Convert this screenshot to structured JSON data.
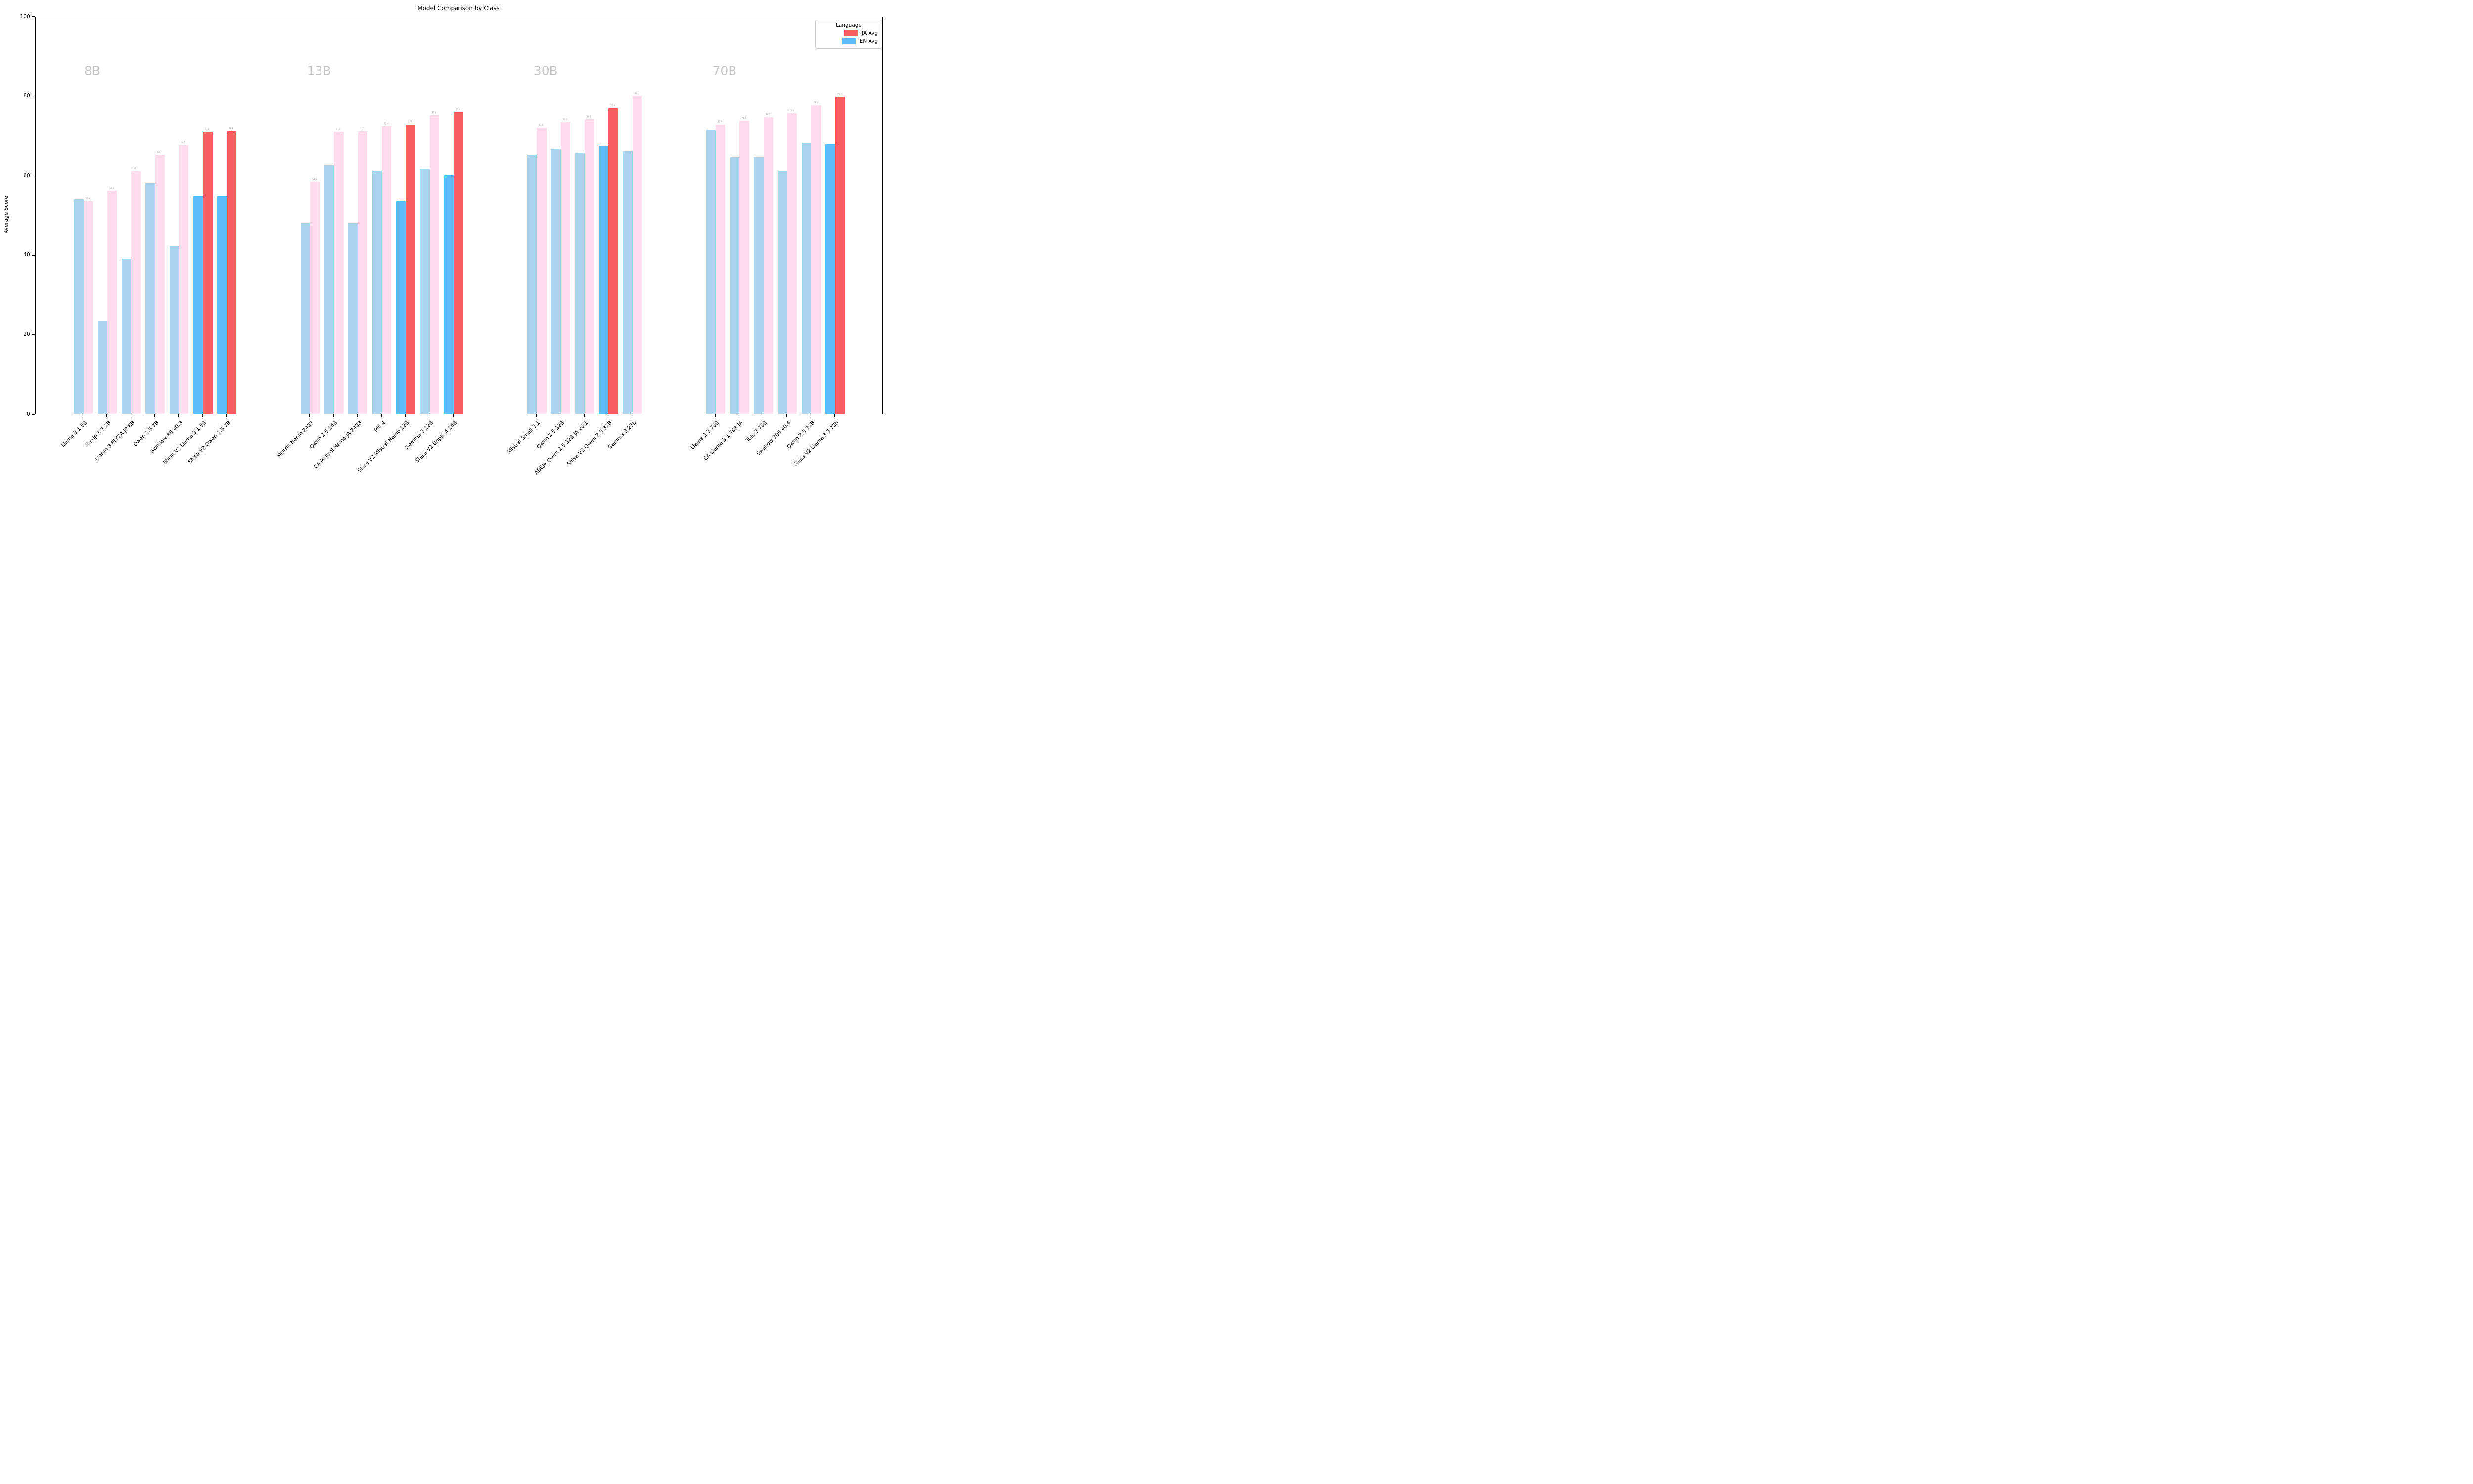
{
  "chart_data": {
    "type": "bar",
    "title": "Model Comparison by Class",
    "ylabel": "Average Score",
    "ylim": [
      0,
      100
    ],
    "yticks": [
      0,
      20,
      40,
      60,
      80,
      100
    ],
    "grid": false,
    "legend": {
      "title": "Language",
      "position": "upper right",
      "series": [
        {
          "name": "JA Avg",
          "color": "#fa5f5f"
        },
        {
          "name": "EN Avg",
          "color": "#5bbcf7"
        }
      ]
    },
    "muted_colors": {
      "ja": "#ffdcec",
      "en": "#abd5ee"
    },
    "highlight_colors": {
      "ja": "#fa5f5f",
      "en": "#5bbcf7"
    },
    "bar_value_labels": "ja_series_only",
    "groups": [
      {
        "label": "8B",
        "models": [
          {
            "name": "Llama 3.1 8B",
            "en": 53.9,
            "ja": 53.4,
            "highlight": false
          },
          {
            "name": "llm-jp 3 7.2B",
            "en": 23.5,
            "ja": 56.0,
            "highlight": false
          },
          {
            "name": "Llama 3 ELYZA JP 8B",
            "en": 39.0,
            "ja": 61.0,
            "highlight": false
          },
          {
            "name": "Qwen 2.5 7B",
            "en": 58.0,
            "ja": 65.1,
            "highlight": false
          },
          {
            "name": "Swallow 8B v0.3",
            "en": 42.2,
            "ja": 67.5,
            "highlight": false
          },
          {
            "name": "Shisa V2 Llama 3.1 8B",
            "en": 54.7,
            "ja": 71.0,
            "highlight": true
          },
          {
            "name": "Shisa V2 Qwen 2.5 7B",
            "en": 54.7,
            "ja": 71.1,
            "highlight": true
          }
        ]
      },
      {
        "label": "13B",
        "models": [
          {
            "name": "Mistral Nemo 2407",
            "en": 48.0,
            "ja": 58.4,
            "highlight": false
          },
          {
            "name": "Qwen 2.5 14B",
            "en": 62.5,
            "ja": 71.0,
            "highlight": false
          },
          {
            "name": "CA Mistral Nemo JA 2408",
            "en": 48.0,
            "ja": 71.1,
            "highlight": false
          },
          {
            "name": "Phi 4",
            "en": 61.1,
            "ja": 72.4,
            "highlight": false
          },
          {
            "name": "Shisa V2 Mistral Nemo 12B",
            "en": 53.5,
            "ja": 72.8,
            "highlight": true
          },
          {
            "name": "Gemma 3 12B",
            "en": 61.7,
            "ja": 75.1,
            "highlight": false
          },
          {
            "name": "Shisa V2 Unphi 4 14B",
            "en": 60.1,
            "ja": 75.8,
            "highlight": true
          }
        ]
      },
      {
        "label": "30B",
        "models": [
          {
            "name": "Mistral Small 3.1",
            "en": 65.2,
            "ja": 72.0,
            "highlight": false
          },
          {
            "name": "Qwen 2.5 32B",
            "en": 66.7,
            "ja": 73.3,
            "highlight": false
          },
          {
            "name": "ABEJA Qwen 2.5 32B JA v0.1",
            "en": 65.7,
            "ja": 74.1,
            "highlight": false
          },
          {
            "name": "Shisa V2 Qwen 2.5 32B",
            "en": 67.4,
            "ja": 76.9,
            "highlight": true
          },
          {
            "name": "Gemma 3 27b",
            "en": 66.0,
            "ja": 80.0,
            "highlight": false
          }
        ]
      },
      {
        "label": "70B",
        "models": [
          {
            "name": "Llama 3.3 70B",
            "en": 71.5,
            "ja": 72.8,
            "highlight": false
          },
          {
            "name": "CA Llama 3.1 70B JA",
            "en": 64.5,
            "ja": 73.7,
            "highlight": false
          },
          {
            "name": "Tulu 3 70B",
            "en": 64.5,
            "ja": 74.6,
            "highlight": false
          },
          {
            "name": "Swallow 70B v0.4",
            "en": 61.1,
            "ja": 75.6,
            "highlight": false
          },
          {
            "name": "Qwen 2.5 72B",
            "en": 68.1,
            "ja": 77.6,
            "highlight": false
          },
          {
            "name": "Shisa V2 Llama 3.3 70b",
            "en": 67.7,
            "ja": 79.7,
            "highlight": true
          }
        ]
      }
    ]
  }
}
